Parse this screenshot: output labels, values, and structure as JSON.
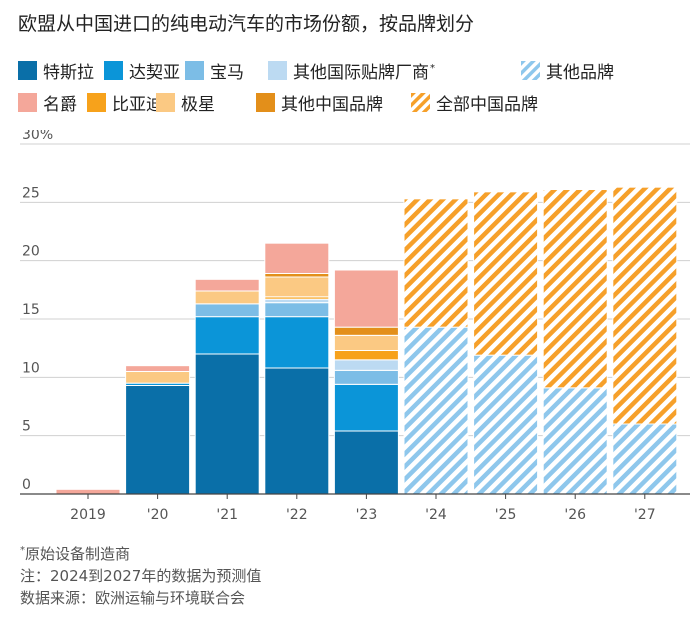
{
  "title": "欧盟从中国进口的纯电动汽车的市场份额，按品牌划分",
  "legend": [
    {
      "key": "tesla",
      "label": "特斯拉",
      "color": "#0a6fa8",
      "pattern": false
    },
    {
      "key": "saic",
      "label": "达契亚",
      "color": "#0b95d8",
      "pattern": false
    },
    {
      "key": "bmw",
      "label": "宝马",
      "color": "#7cbde6",
      "pattern": false
    },
    {
      "key": "other_intl",
      "label": "其他国际贴牌厂商",
      "color": "#bcdaf2",
      "pattern": false,
      "sup": "*"
    },
    {
      "key": "other_brands",
      "label": "其他品牌",
      "color": "#8ec7ec",
      "pattern": true
    },
    {
      "key": "mg",
      "label": "名爵",
      "color": "#f4a79a",
      "pattern": false
    },
    {
      "key": "byd",
      "label": "比亚迪",
      "color": "#f7a21b",
      "pattern": false
    },
    {
      "key": "polestar",
      "label": "极星",
      "color": "#fbc983",
      "pattern": false
    },
    {
      "key": "other_cn",
      "label": "其他中国品牌",
      "color": "#e38f1a",
      "pattern": false
    },
    {
      "key": "all_cn",
      "label": "全部中国品牌",
      "color": "#f6a02a",
      "pattern": true
    }
  ],
  "chart_data": {
    "type": "bar",
    "stacked": true,
    "categories": [
      "2019",
      "'20",
      "'21",
      "'22",
      "'23",
      "'24",
      "'25",
      "'26",
      "'27"
    ],
    "y_ticks": [
      "0",
      "5",
      "10",
      "15",
      "20",
      "25",
      "30%"
    ],
    "ylim": [
      0,
      30
    ],
    "grid": true,
    "series": [
      {
        "name": "特斯拉",
        "key": "tesla",
        "values": [
          0,
          9.3,
          12.0,
          10.8,
          5.4,
          0,
          0,
          0,
          0
        ]
      },
      {
        "name": "达契亚",
        "key": "saic",
        "values": [
          0,
          0.2,
          3.2,
          4.4,
          4.0,
          0,
          0,
          0,
          0
        ]
      },
      {
        "name": "宝马",
        "key": "bmw",
        "values": [
          0,
          0,
          1.1,
          1.2,
          1.2,
          0,
          0,
          0,
          0
        ]
      },
      {
        "name": "其他国际贴牌厂商",
        "key": "other_intl",
        "values": [
          0,
          0,
          0,
          0.3,
          0.9,
          0,
          0,
          0,
          0
        ]
      },
      {
        "name": "其他品牌",
        "key": "other_brands",
        "values": [
          0,
          0,
          0,
          0,
          0,
          14.3,
          11.9,
          9.1,
          6.0
        ]
      },
      {
        "name": "比亚迪",
        "key": "byd",
        "values": [
          0,
          0,
          0,
          0.2,
          0.8,
          0,
          0,
          0,
          0
        ]
      },
      {
        "name": "极星",
        "key": "polestar",
        "values": [
          0,
          1.0,
          1.1,
          1.7,
          1.3,
          0,
          0,
          0,
          0
        ]
      },
      {
        "name": "其他中国品牌",
        "key": "other_cn",
        "values": [
          0,
          0,
          0,
          0.3,
          0.7,
          0,
          0,
          0,
          0
        ]
      },
      {
        "name": "名爵",
        "key": "mg",
        "values": [
          0.4,
          0.5,
          1.0,
          2.6,
          4.9,
          0,
          0,
          0,
          0
        ]
      },
      {
        "name": "全部中国品牌",
        "key": "all_cn",
        "values": [
          0,
          0,
          0,
          0,
          0,
          11.0,
          14.0,
          17.0,
          20.3
        ]
      }
    ]
  },
  "notes": {
    "footnote": "原始设备制造商",
    "footnote_mark": "*",
    "note": "注：2024到2027年的数据为预测值",
    "source": "数据来源：欧洲运输与环境联合会"
  }
}
